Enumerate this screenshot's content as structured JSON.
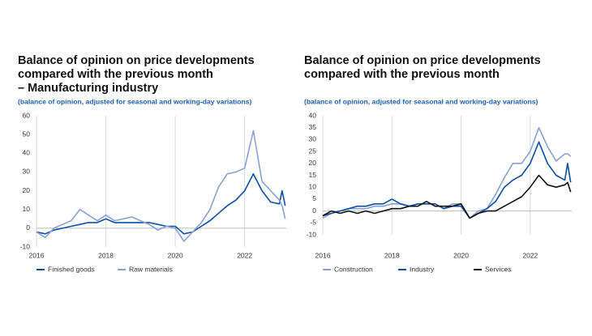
{
  "chart_data": [
    {
      "type": "line",
      "title": [
        "Balance of opinion on price developments",
        "compared with the previous month",
        "– Manufacturing industry"
      ],
      "subtitle": "(balance of opinion, adjusted for seasonal and working-day variations)",
      "x": [
        2016,
        2016.25,
        2016.5,
        2016.75,
        2017,
        2017.25,
        2017.5,
        2017.75,
        2018,
        2018.25,
        2018.5,
        2018.75,
        2019,
        2019.25,
        2019.5,
        2019.75,
        2020,
        2020.25,
        2020.5,
        2020.75,
        2021,
        2021.25,
        2021.5,
        2021.75,
        2022,
        2022.25,
        2022.5,
        2022.75,
        2023,
        2023.08,
        2023.17
      ],
      "xlim": [
        2016,
        2023.2
      ],
      "xticks": [
        2016,
        2018,
        2020,
        2022
      ],
      "ylim": [
        -10,
        60
      ],
      "yticks": [
        -10,
        0,
        10,
        20,
        30,
        40,
        50,
        60
      ],
      "grid": true,
      "legend": "bottom",
      "series": [
        {
          "name": "Finished goods",
          "color": "#0b4ea2",
          "values": [
            -2,
            -3,
            -1,
            0,
            1,
            2,
            3,
            3,
            5,
            3,
            3,
            3,
            3,
            3,
            2,
            1,
            1,
            -3,
            -2,
            1,
            4,
            8,
            12,
            15,
            20,
            29,
            20,
            14,
            13,
            20,
            12
          ]
        },
        {
          "name": "Raw materials",
          "color": "#8c9fd3",
          "values": [
            -2,
            -5,
            0,
            2,
            4,
            10,
            7,
            4,
            7,
            4,
            5,
            6,
            4,
            2,
            -1,
            1,
            0,
            -7,
            -2,
            3,
            10,
            22,
            29,
            30,
            32,
            52,
            25,
            20,
            15,
            12,
            5
          ]
        }
      ]
    },
    {
      "type": "line",
      "title": [
        "Balance of opinion on price developments",
        "compared with the previous month"
      ],
      "subtitle": "(balance of opinion, adjusted for seasonal and working-day variations)",
      "x": [
        2016,
        2016.25,
        2016.5,
        2016.75,
        2017,
        2017.25,
        2017.5,
        2017.75,
        2018,
        2018.25,
        2018.5,
        2018.75,
        2019,
        2019.25,
        2019.5,
        2019.75,
        2020,
        2020.25,
        2020.5,
        2020.75,
        2021,
        2021.25,
        2021.5,
        2021.75,
        2022,
        2022.25,
        2022.5,
        2022.75,
        2023,
        2023.08,
        2023.17
      ],
      "xlim": [
        2016,
        2023.2
      ],
      "xticks": [
        2016,
        2018,
        2020,
        2022
      ],
      "ylim": [
        -10,
        40
      ],
      "yticks": [
        -10,
        -5,
        0,
        5,
        10,
        15,
        20,
        25,
        30,
        35,
        40
      ],
      "grid": true,
      "legend": "bottom",
      "series": [
        {
          "name": "Construction",
          "color": "#8c9fd3",
          "values": [
            -3,
            -1,
            0,
            1,
            1,
            1,
            2,
            2,
            3,
            3,
            2,
            3,
            3,
            3,
            1,
            3,
            3,
            -3,
            0,
            1,
            7,
            14,
            20,
            20,
            25,
            35,
            27,
            21,
            24,
            24,
            23
          ]
        },
        {
          "name": "Industry",
          "color": "#0b4ea2",
          "values": [
            -2,
            -1,
            0,
            1,
            2,
            2,
            3,
            3,
            5,
            3,
            2,
            3,
            3,
            3,
            1,
            2,
            2,
            -3,
            -1,
            1,
            4,
            10,
            13,
            15,
            20,
            29,
            20,
            15,
            13,
            20,
            12
          ]
        },
        {
          "name": "Services",
          "color": "#111111",
          "values": [
            -2,
            0,
            -1,
            0,
            -1,
            0,
            -1,
            0,
            1,
            1,
            2,
            2,
            4,
            2,
            2,
            2,
            3,
            -3,
            -1,
            0,
            0,
            2,
            4,
            6,
            10,
            15,
            11,
            10,
            11,
            12,
            8
          ]
        }
      ]
    }
  ]
}
